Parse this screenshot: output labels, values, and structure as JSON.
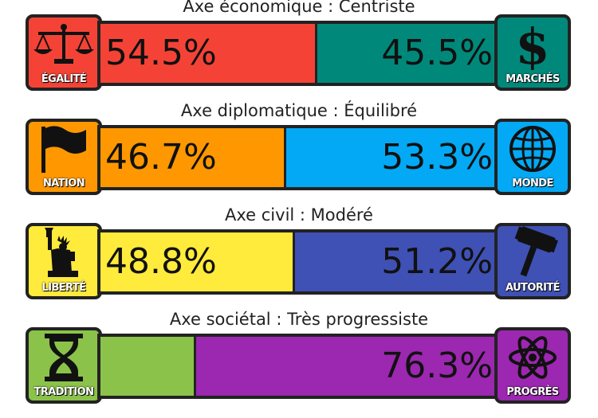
{
  "axes": [
    {
      "title": "Axe économique : Centriste",
      "left": {
        "label": "ÉGALITÉ",
        "icon": "scales-icon",
        "color": "#f44336",
        "value": 54.5,
        "text": "54.5%"
      },
      "right": {
        "label": "MARCHÉS",
        "icon": "dollar-icon",
        "color": "#00897b",
        "value": 45.5,
        "text": "45.5%"
      }
    },
    {
      "title": "Axe diplomatique : Équilibré",
      "left": {
        "label": "NATION",
        "icon": "flag-icon",
        "color": "#ff9800",
        "value": 46.7,
        "text": "46.7%"
      },
      "right": {
        "label": "MONDE",
        "icon": "globe-icon",
        "color": "#03a9f4",
        "value": 53.3,
        "text": "53.3%"
      }
    },
    {
      "title": "Axe civil : Modéré",
      "left": {
        "label": "LIBERTÉ",
        "icon": "statue-of-liberty-icon",
        "color": "#ffeb3b",
        "value": 48.8,
        "text": "48.8%"
      },
      "right": {
        "label": "AUTORITÉ",
        "icon": "gavel-icon",
        "color": "#3f51b5",
        "value": 51.2,
        "text": "51.2%"
      }
    },
    {
      "title": "Axe sociétal : Très progressiste",
      "left": {
        "label": "TRADITION",
        "icon": "hourglass-icon",
        "color": "#8bc34a",
        "value": 23.7,
        "text": ""
      },
      "right": {
        "label": "PROGRÈS",
        "icon": "atom-icon",
        "color": "#9c27b0",
        "value": 76.3,
        "text": "76.3%"
      }
    }
  ]
}
